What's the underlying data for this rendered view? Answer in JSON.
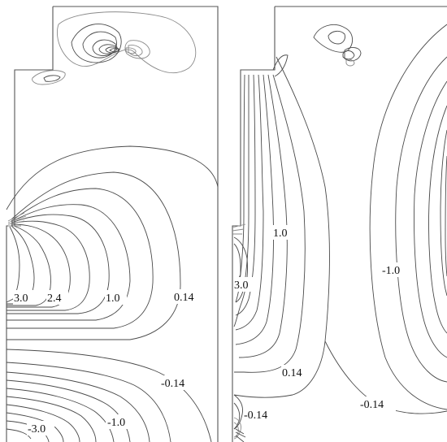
{
  "left_panel": {
    "labels": [
      "3.0",
      "2.4",
      "1.0",
      "0.14",
      "-0.14",
      "-3.0",
      "-1.0"
    ]
  },
  "right_panel": {
    "labels": [
      "1.0",
      "3.0",
      "-1.0",
      "0.14",
      "-0.14",
      "-0.14"
    ]
  }
}
